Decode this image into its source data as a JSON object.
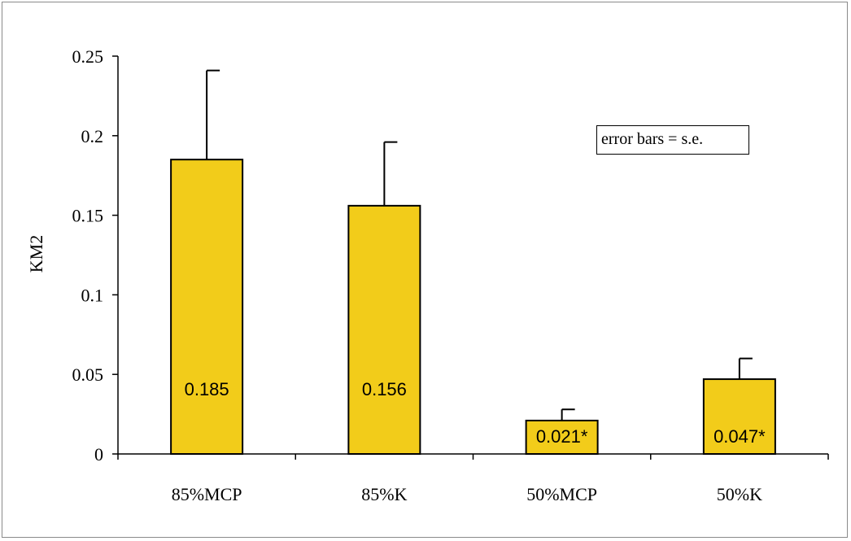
{
  "chart_data": {
    "type": "bar",
    "categories": [
      "85%MCP",
      "85%K",
      "50%MCP",
      "50%K"
    ],
    "values": [
      0.185,
      0.156,
      0.021,
      0.047
    ],
    "error_upper": [
      0.241,
      0.196,
      0.028,
      0.06
    ],
    "data_labels": [
      "0.185",
      "0.156",
      "0.021*",
      "0.047*"
    ],
    "ylabel": "KM2",
    "xlabel": "",
    "ylim": [
      0,
      0.25
    ],
    "yticks": [
      0,
      0.05,
      0.1,
      0.15,
      0.2,
      0.25
    ],
    "ytick_labels": [
      "0",
      "0.05",
      "0.1",
      "0.15",
      "0.2",
      "0.25"
    ],
    "annotation": "error bars = s.e.",
    "bar_color": "#f2cc1a",
    "grid": false
  }
}
